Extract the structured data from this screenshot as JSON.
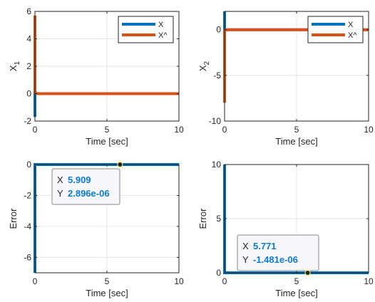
{
  "colors": {
    "series1": "#0072BD",
    "series2": "#D95319",
    "grid": "#e6e6e6",
    "axis": "#262626",
    "tooltip_value": "#0b7bd6"
  },
  "chart_data": [
    {
      "type": "line",
      "ylabel": "X",
      "ylabel_sub": "1",
      "xlabel": "Time [sec]",
      "xlim": [
        0,
        10
      ],
      "ylim": [
        -2,
        6
      ],
      "xticks": [
        "0",
        "5",
        "10"
      ],
      "yticks": [
        "-2",
        "0",
        "2",
        "4",
        "6"
      ],
      "grid": true,
      "legend": "top-right",
      "series": [
        {
          "name": "X",
          "x": [
            0,
            0,
            10
          ],
          "y": [
            -1.7,
            0,
            0
          ]
        },
        {
          "name": "X^",
          "x": [
            0,
            0,
            0.15,
            10
          ],
          "y": [
            5.7,
            0.1,
            0,
            0
          ]
        }
      ]
    },
    {
      "type": "line",
      "ylabel": "X",
      "ylabel_sub": "2",
      "xlabel": "Time [sec]",
      "xlim": [
        0,
        10
      ],
      "ylim": [
        -10,
        2
      ],
      "xticks": [
        "0",
        "5",
        "10"
      ],
      "yticks": [
        "-10",
        "-5",
        "0"
      ],
      "grid": true,
      "legend": "top-right",
      "series": [
        {
          "name": "X",
          "x": [
            0,
            0,
            10
          ],
          "y": [
            2,
            0,
            0
          ]
        },
        {
          "name": "X^",
          "x": [
            0,
            0,
            0.1,
            10
          ],
          "y": [
            -8,
            -0.1,
            0,
            0
          ]
        }
      ]
    },
    {
      "type": "line",
      "ylabel": "Error",
      "xlabel": "Time [sec]",
      "xlim": [
        0,
        10
      ],
      "ylim": [
        -7,
        0
      ],
      "xticks": [
        "0",
        "5",
        "10"
      ],
      "yticks": [
        "-6",
        "-4",
        "-2",
        "0"
      ],
      "grid": true,
      "series": [
        {
          "x": [
            0,
            0,
            10
          ],
          "y": [
            -7,
            0,
            0
          ]
        }
      ],
      "datatip": {
        "x_label": "X",
        "x_value": "5.909",
        "y_label": "Y",
        "y_value": "2.896e-06",
        "x": 5.909,
        "y": 0
      }
    },
    {
      "type": "line",
      "ylabel": "Error",
      "xlabel": "Time [sec]",
      "xlim": [
        0,
        10
      ],
      "ylim": [
        0,
        10
      ],
      "xticks": [
        "0",
        "5",
        "10"
      ],
      "yticks": [
        "0",
        "5",
        "10"
      ],
      "grid": true,
      "series": [
        {
          "x": [
            0,
            0,
            10
          ],
          "y": [
            10,
            0,
            0
          ]
        }
      ],
      "datatip": {
        "x_label": "X",
        "x_value": "5.771",
        "y_label": "Y",
        "y_value": "-1.481e-06",
        "x": 5.771,
        "y": 0
      }
    }
  ]
}
